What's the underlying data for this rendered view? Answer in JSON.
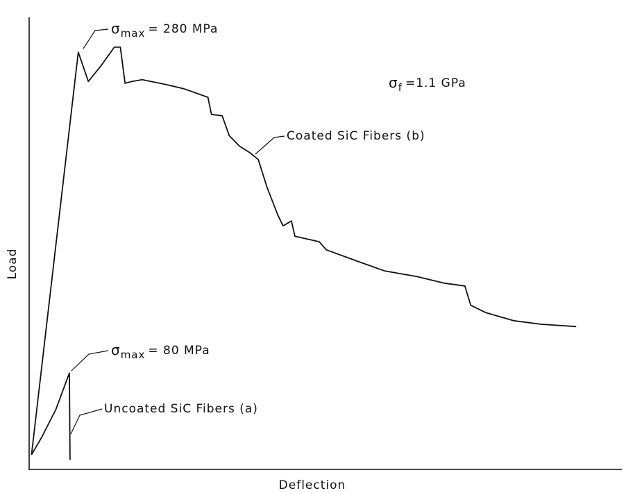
{
  "chart_data": {
    "type": "line",
    "x_label": "Deflection",
    "y_label": "Load",
    "xlim": [
      0,
      100
    ],
    "ylim": [
      0,
      100
    ],
    "series": [
      {
        "name": "Coated SiC Fibers (b)",
        "color": "#111111",
        "x": [
          0.4,
          8.3,
          10.0,
          12.1,
          14.4,
          15.4,
          16.2,
          17.4,
          19.1,
          23.2,
          26.1,
          30.2,
          30.8,
          32.6,
          33.8,
          35.5,
          37.3,
          38.7,
          40.2,
          42.0,
          42.9,
          44.3,
          44.9,
          49.0,
          50.2,
          56.0,
          60.1,
          65.4,
          70.1,
          73.6,
          74.6,
          77.1,
          81.8,
          86.5,
          92.4
        ],
        "values": [
          3.1,
          92.3,
          85.8,
          89.2,
          93.4,
          93.4,
          85.4,
          85.8,
          86.2,
          85.1,
          84.2,
          82.3,
          78.5,
          78.2,
          73.8,
          71.5,
          70.0,
          68.5,
          62.3,
          56.2,
          53.8,
          54.9,
          51.5,
          50.3,
          48.5,
          45.7,
          43.8,
          42.6,
          41.1,
          40.5,
          36.2,
          34.6,
          32.8,
          32.0,
          31.5
        ]
      },
      {
        "name": "Uncoated SiC Fibers (a)",
        "color": "#111111",
        "x": [
          0.4,
          2.1,
          4.5,
          6.8,
          6.9
        ],
        "values": [
          3.1,
          6.9,
          13.1,
          21.2,
          2.0
        ]
      }
    ],
    "annotations": [
      {
        "symbol": "σ",
        "subscript": "max",
        "text": "= 280 MPa"
      },
      {
        "symbol": "σ",
        "subscript": "max",
        "text": "= 80 MPa"
      },
      {
        "symbol": "σ",
        "subscript": "f",
        "text": "=1.1 GPa"
      }
    ]
  }
}
